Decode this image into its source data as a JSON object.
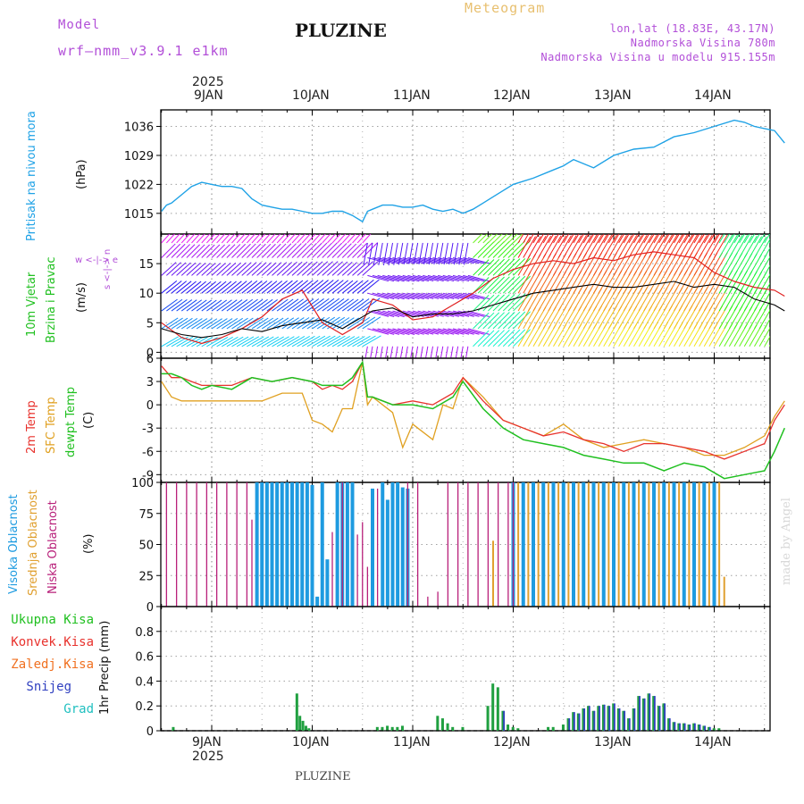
{
  "header": {
    "model_label": "Model",
    "model_name": "wrf—nmm_v3.9.1  e1km",
    "station": "PLUZINE",
    "meteogram": "Meteogram",
    "lonlat": "lon,lat (18.83E, 43.17N)",
    "elev": "Nadmorska Visina 780m",
    "elev_model": "Nadmorska Visina u modelu 915.155m"
  },
  "footer": {
    "station": "PLUZINE",
    "credit": "made by Angel"
  },
  "colors": {
    "pressure": "#1fa2e6",
    "wind_speed": "#000000",
    "gust": "#e02020",
    "temp2m": "#e8322d",
    "sfc_temp": "#e0a020",
    "dewpt": "#20c020",
    "high_cloud": "#1e9be0",
    "mid_cloud": "#e0a030",
    "low_cloud": "#b8207a",
    "total_precip": "#20a040",
    "snow": "#3040c0"
  },
  "axes": {
    "year": "2025",
    "dates": [
      "9JAN",
      "10JAN",
      "11JAN",
      "12JAN",
      "13JAN",
      "14JAN"
    ]
  },
  "chart_data": [
    {
      "type": "line",
      "panel": "pressure",
      "ylabel_top": "Pritisak na nivou mora",
      "ylabel_unit": "(hPa)",
      "yticks": [
        "1036",
        "1029",
        "1022",
        "1015"
      ],
      "ylim": [
        1010,
        1040
      ],
      "x_unit": "days from 9JAN 00:00",
      "series": [
        {
          "x": [
            -0.5,
            -0.45,
            -0.4,
            -0.3,
            -0.2,
            -0.1,
            0,
            0.1,
            0.2,
            0.3,
            0.4,
            0.5,
            0.6,
            0.7,
            0.8,
            0.9,
            1.0,
            1.1,
            1.2,
            1.3,
            1.4,
            1.5,
            1.55,
            1.6,
            1.7,
            1.8,
            1.9,
            2.0,
            2.1,
            2.2,
            2.3,
            2.4,
            2.5,
            2.6,
            2.7,
            2.8,
            2.9,
            3.0,
            3.2,
            3.4,
            3.5,
            3.6,
            3.8,
            4.0,
            4.2,
            4.4,
            4.6,
            4.8,
            5.0,
            5.2,
            5.3,
            5.4,
            5.5,
            5.6,
            5.7
          ],
          "y": [
            1015.5,
            1017,
            1017.5,
            1019.5,
            1021.5,
            1022.5,
            1022,
            1021.5,
            1021.5,
            1021,
            1018.5,
            1017,
            1016.5,
            1016,
            1016,
            1015.5,
            1015,
            1015,
            1015.5,
            1015.5,
            1014.5,
            1013,
            1015.5,
            1016,
            1017,
            1017,
            1016.5,
            1016.5,
            1017,
            1016,
            1015.5,
            1016,
            1015,
            1016,
            1017.5,
            1019,
            1020.5,
            1022,
            1023.5,
            1025.5,
            1026.5,
            1028,
            1026,
            1029,
            1030.5,
            1031,
            1033.5,
            1034.5,
            1036,
            1037.5,
            1037,
            1036,
            1035.5,
            1035,
            1032
          ]
        }
      ]
    },
    {
      "type": "line",
      "panel": "wind",
      "ylabel_1": "10m Vjetar",
      "ylabel_2": "Brzina i Pravac",
      "ylabel_unit": "(m/s)",
      "compass": "w <-|-> e",
      "compass_ns": "s <-|-> n",
      "yticks": [
        "15",
        "10",
        "5",
        "0"
      ],
      "ylim": [
        -1,
        20
      ],
      "x_unit": "days from 9JAN 00:00",
      "series": [
        {
          "name": "speed",
          "x": [
            -0.5,
            -0.3,
            -0.1,
            0.1,
            0.3,
            0.5,
            0.7,
            0.9,
            1.1,
            1.3,
            1.5,
            1.6,
            1.8,
            2.0,
            2.2,
            2.4,
            2.6,
            2.8,
            3.0,
            3.2,
            3.4,
            3.6,
            3.8,
            4.0,
            4.2,
            4.4,
            4.6,
            4.8,
            5.0,
            5.2,
            5.4,
            5.6,
            5.7
          ],
          "y": [
            4,
            3,
            2.5,
            3,
            4,
            3.5,
            4.5,
            5,
            5.5,
            4,
            6,
            7,
            7.5,
            6,
            6.5,
            6.5,
            7,
            8,
            9,
            10,
            10.5,
            11,
            11.5,
            11,
            11,
            11.5,
            12,
            11,
            11.5,
            11,
            9,
            8,
            7
          ]
        },
        {
          "name": "gust",
          "x": [
            -0.5,
            -0.3,
            -0.1,
            0.1,
            0.3,
            0.5,
            0.7,
            0.9,
            1.1,
            1.3,
            1.5,
            1.6,
            1.8,
            2.0,
            2.2,
            2.4,
            2.6,
            2.8,
            3.0,
            3.2,
            3.4,
            3.6,
            3.8,
            4.0,
            4.2,
            4.4,
            4.6,
            4.8,
            5.0,
            5.2,
            5.4,
            5.6,
            5.7
          ],
          "y": [
            5,
            2.5,
            1.5,
            2.5,
            4,
            6,
            9,
            10.5,
            5,
            3,
            5,
            9,
            8,
            5.5,
            6,
            8,
            10,
            12.5,
            14,
            15,
            15.5,
            15,
            16,
            15.5,
            16.5,
            17,
            16.5,
            16,
            13.5,
            12,
            11,
            10.5,
            9.5
          ]
        }
      ]
    },
    {
      "type": "line",
      "panel": "temperature",
      "ylabel_1": "2m Temp",
      "ylabel_2": "SFC Temp",
      "ylabel_3": "dewpt Temp",
      "ylabel_unit": "(C)",
      "yticks": [
        "6",
        "3",
        "0",
        "-3",
        "-6",
        "-9"
      ],
      "ylim": [
        -10,
        6
      ],
      "x_unit": "days from 9JAN 00:00",
      "series": [
        {
          "name": "2m Temp",
          "x": [
            -0.5,
            -0.4,
            -0.3,
            -0.2,
            -0.1,
            0,
            0.2,
            0.4,
            0.6,
            0.8,
            1.0,
            1.1,
            1.2,
            1.3,
            1.4,
            1.5,
            1.55,
            1.6,
            1.8,
            2.0,
            2.2,
            2.4,
            2.5,
            2.7,
            2.9,
            3.1,
            3.3,
            3.5,
            3.7,
            3.9,
            4.1,
            4.3,
            4.5,
            4.7,
            4.9,
            5.1,
            5.3,
            5.5,
            5.6,
            5.7
          ],
          "y": [
            5,
            3.5,
            3.5,
            3,
            2.5,
            2.5,
            2.5,
            3.5,
            3,
            3.5,
            3,
            2,
            2.5,
            2,
            3,
            5.5,
            1,
            1,
            0,
            0.5,
            0,
            1.5,
            3.5,
            0.5,
            -2,
            -3,
            -4,
            -3.5,
            -4.5,
            -5,
            -6,
            -5,
            -5,
            -5.5,
            -6,
            -7,
            -6,
            -5,
            -2,
            0
          ]
        },
        {
          "name": "SFC Temp",
          "x": [
            -0.5,
            -0.4,
            -0.3,
            -0.1,
            0.1,
            0.3,
            0.5,
            0.7,
            0.9,
            1.0,
            1.1,
            1.2,
            1.3,
            1.4,
            1.5,
            1.55,
            1.6,
            1.8,
            1.9,
            2.0,
            2.2,
            2.3,
            2.4,
            2.5,
            2.7,
            2.9,
            3.1,
            3.3,
            3.5,
            3.7,
            3.9,
            4.1,
            4.3,
            4.5,
            4.7,
            4.9,
            5.1,
            5.3,
            5.5,
            5.6,
            5.7
          ],
          "y": [
            3,
            1,
            0.5,
            0.5,
            0.5,
            0.5,
            0.5,
            1.5,
            1.5,
            -2,
            -2.5,
            -3.5,
            -0.5,
            -0.5,
            5.5,
            0,
            1,
            -1,
            -5.5,
            -2.5,
            -4.5,
            0,
            -0.5,
            3.5,
            1,
            -2,
            -3,
            -4,
            -2.5,
            -4.5,
            -5.5,
            -5,
            -4.5,
            -5,
            -5.5,
            -6.5,
            -6.5,
            -5.5,
            -4,
            -1.5,
            0.5
          ]
        },
        {
          "name": "dewpt Temp",
          "x": [
            -0.5,
            -0.4,
            -0.3,
            -0.2,
            -0.1,
            0,
            0.2,
            0.4,
            0.6,
            0.8,
            1.0,
            1.1,
            1.2,
            1.3,
            1.4,
            1.5,
            1.55,
            1.6,
            1.8,
            2.0,
            2.2,
            2.4,
            2.5,
            2.7,
            2.9,
            3.1,
            3.3,
            3.5,
            3.7,
            3.9,
            4.1,
            4.3,
            4.5,
            4.7,
            4.9,
            5.1,
            5.3,
            5.5,
            5.6,
            5.7
          ],
          "y": [
            4,
            4,
            3.5,
            2.5,
            2,
            2.5,
            2,
            3.5,
            3,
            3.5,
            3,
            2.5,
            2.5,
            2.5,
            3.5,
            5.5,
            1,
            1,
            0,
            0,
            -0.5,
            1,
            3,
            -0.5,
            -3,
            -4.5,
            -5,
            -5.5,
            -6.5,
            -7,
            -7.5,
            -7.5,
            -8.5,
            -7.5,
            -8,
            -9.5,
            -9,
            -8.5,
            -6,
            -3
          ]
        }
      ]
    },
    {
      "type": "bar",
      "panel": "cloud",
      "ylabel_1": "Visoka Oblacnost",
      "ylabel_2": "Srednja Oblacnost",
      "ylabel_3": "Niska Oblacnost",
      "ylabel_unit": "(%)",
      "yticks": [
        "100",
        "75",
        "50",
        "25",
        "0"
      ],
      "ylim": [
        0,
        100
      ],
      "x_unit": "days from 9JAN 00:00",
      "series": [
        {
          "name": "Visoka Oblacnost",
          "x": [
            0.45,
            0.5,
            0.55,
            0.6,
            0.65,
            0.7,
            0.75,
            0.8,
            0.85,
            0.9,
            0.95,
            1.0,
            1.05,
            1.1,
            1.15,
            1.25,
            1.3,
            1.35,
            1.4,
            1.6,
            1.7,
            1.75,
            1.8,
            1.85,
            1.9,
            1.95,
            3.0,
            3.1,
            3.2,
            3.3,
            3.4,
            3.5,
            3.6,
            3.7,
            3.8,
            3.9,
            4.0,
            4.1,
            4.2,
            4.3,
            4.4,
            4.5,
            4.6,
            4.7,
            4.8,
            4.9,
            5.0
          ],
          "y": [
            100,
            100,
            100,
            100,
            100,
            100,
            100,
            100,
            100,
            100,
            100,
            98,
            8,
            100,
            38,
            100,
            100,
            100,
            100,
            95,
            100,
            86,
            100,
            100,
            96,
            95,
            100,
            100,
            100,
            100,
            100,
            100,
            100,
            100,
            100,
            100,
            100,
            100,
            100,
            100,
            100,
            100,
            100,
            100,
            100,
            100,
            100
          ]
        },
        {
          "name": "Srednja Oblacnost",
          "x": [
            2.8,
            3.05,
            3.15,
            3.25,
            3.35,
            3.45,
            3.55,
            3.65,
            3.75,
            3.85,
            3.95,
            4.05,
            4.15,
            4.25,
            4.35,
            4.45,
            4.55,
            4.65,
            4.75,
            4.85,
            4.95,
            5.05,
            5.1
          ],
          "y": [
            53,
            100,
            100,
            100,
            100,
            100,
            100,
            100,
            100,
            100,
            100,
            100,
            100,
            100,
            100,
            100,
            100,
            100,
            100,
            100,
            100,
            100,
            24
          ]
        },
        {
          "name": "Niska Oblacnost",
          "x": [
            -0.45,
            -0.35,
            -0.25,
            -0.15,
            -0.05,
            0.05,
            0.15,
            0.25,
            0.35,
            0.4,
            1.2,
            1.3,
            1.45,
            1.5,
            1.55,
            1.65,
            1.95,
            2.05,
            2.15,
            2.25,
            2.35,
            2.45,
            2.55,
            2.65,
            2.75,
            2.85,
            2.95,
            3.0
          ],
          "y": [
            100,
            100,
            100,
            100,
            100,
            100,
            100,
            100,
            100,
            70,
            60,
            100,
            58,
            68,
            32,
            95,
            100,
            100,
            8,
            12,
            100,
            100,
            100,
            100,
            100,
            100,
            100,
            100
          ]
        }
      ]
    },
    {
      "type": "bar",
      "panel": "precip",
      "legend": [
        "Ukupna  Kisa",
        "Konvek.Kisa",
        "Zaledj.Kisa",
        "Snijeg",
        "Grad"
      ],
      "ylabel_unit": "1hr Precip (mm)",
      "yticks": [
        "0.8",
        "0.6",
        "0.4",
        "0.2",
        "0"
      ],
      "ylim": [
        0,
        1.0
      ],
      "x_unit": "days from 9JAN 00:00",
      "series": [
        {
          "name": "Ukupna  Kisa",
          "x": [
            -0.38,
            0.85,
            0.88,
            0.91,
            0.94,
            0.97,
            1.65,
            1.7,
            1.75,
            1.8,
            1.85,
            1.9,
            2.25,
            2.3,
            2.35,
            2.4,
            2.5,
            2.75,
            2.8,
            2.85,
            2.9,
            2.95,
            3.0,
            3.05,
            3.35,
            3.4,
            3.5,
            3.55,
            3.6,
            3.65,
            3.7,
            3.75,
            3.8,
            3.85,
            3.9,
            3.95,
            4.0,
            4.05,
            4.1,
            4.15,
            4.2,
            4.25,
            4.3,
            4.35,
            4.4,
            4.45,
            4.5,
            4.55,
            4.6,
            4.65,
            4.7,
            4.75,
            4.8,
            4.85,
            4.9,
            4.95,
            5.0,
            5.05
          ],
          "y": [
            0.03,
            0.3,
            0.12,
            0.08,
            0.04,
            0.02,
            0.03,
            0.03,
            0.04,
            0.03,
            0.03,
            0.04,
            0.12,
            0.1,
            0.06,
            0.03,
            0.03,
            0.2,
            0.38,
            0.35,
            0.16,
            0.05,
            0.03,
            0.02,
            0.03,
            0.03,
            0.05,
            0.1,
            0.15,
            0.14,
            0.18,
            0.2,
            0.16,
            0.2,
            0.21,
            0.2,
            0.22,
            0.18,
            0.16,
            0.1,
            0.18,
            0.28,
            0.26,
            0.3,
            0.28,
            0.2,
            0.22,
            0.1,
            0.07,
            0.06,
            0.06,
            0.05,
            0.06,
            0.05,
            0.04,
            0.03,
            0.02,
            0.02
          ]
        },
        {
          "name": "Snijeg",
          "x": [
            2.9,
            3.55,
            3.6,
            3.65,
            3.7,
            3.75,
            3.8,
            3.85,
            3.9,
            3.95,
            4.0,
            4.05,
            4.1,
            4.15,
            4.2,
            4.25,
            4.3,
            4.35,
            4.4,
            4.45,
            4.5,
            4.55,
            4.6,
            4.65,
            4.7,
            4.75,
            4.8,
            4.85,
            4.9,
            4.95
          ],
          "y": [
            0.16,
            0.1,
            0.15,
            0.14,
            0.18,
            0.2,
            0.16,
            0.2,
            0.21,
            0.2,
            0.22,
            0.18,
            0.16,
            0.1,
            0.18,
            0.28,
            0.26,
            0.3,
            0.28,
            0.2,
            0.22,
            0.1,
            0.07,
            0.06,
            0.06,
            0.05,
            0.06,
            0.05,
            0.04,
            0.03
          ]
        }
      ]
    }
  ]
}
